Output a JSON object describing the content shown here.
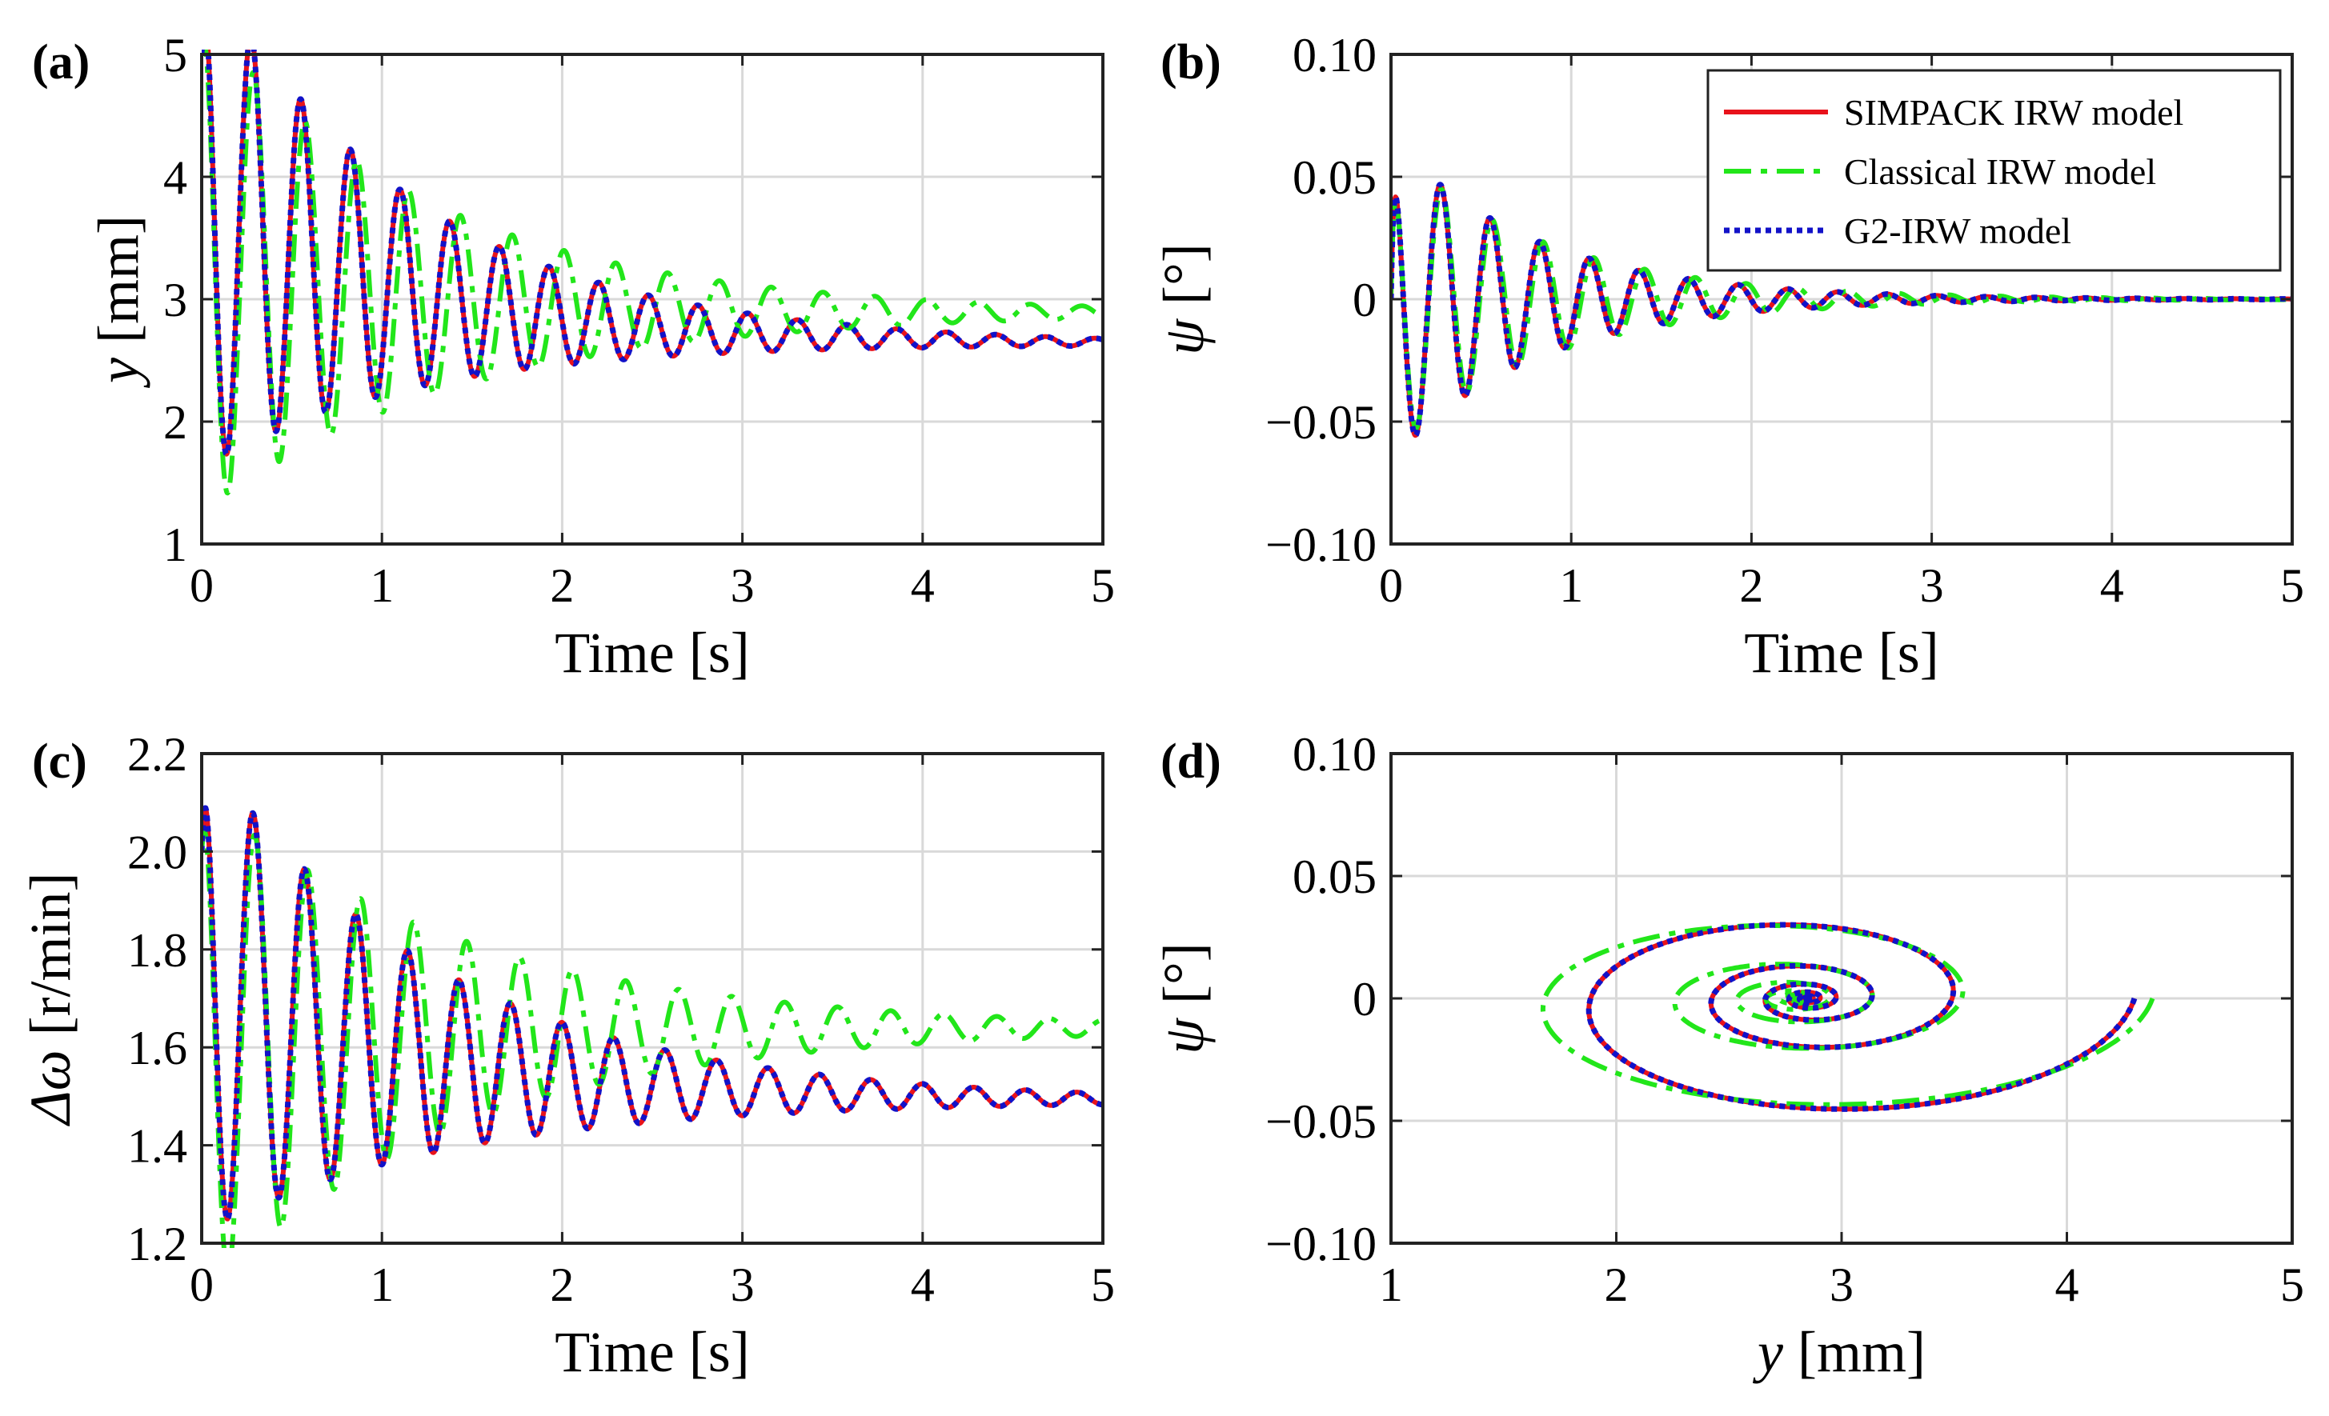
{
  "legend": {
    "placement": "top-right of panel (b)",
    "entries": [
      {
        "label": "SIMPACK IRW model",
        "color": "#e8131b",
        "style": "solid"
      },
      {
        "label": "Classical IRW model",
        "color": "#22e61a",
        "style": "dash-dot"
      },
      {
        "label": "G2-IRW model",
        "color": "#1212c8",
        "style": "dotted"
      }
    ]
  },
  "chart_data": [
    {
      "id": "a",
      "panel_label": "(a)",
      "type": "line",
      "xlabel": "Time [s]",
      "ylabel_var": "y",
      "ylabel_unit": " [mm]",
      "xlim": [
        0,
        5
      ],
      "ylim": [
        1,
        5
      ],
      "xticks": [
        0,
        1,
        2,
        3,
        4,
        5
      ],
      "yticks": [
        1,
        2,
        3,
        4,
        5
      ],
      "ytick_labels": [
        "1",
        "2",
        "3",
        "4",
        "5"
      ],
      "grid": true,
      "model": "damped_sine",
      "series": [
        {
          "name": "SIMPACK IRW model",
          "y0": 5.0,
          "start": 3.7,
          "final": 2.63,
          "amp": 2.1,
          "decay": 0.85,
          "freq": 3.63,
          "settle": 1.25
        },
        {
          "name": "Classical IRW model",
          "y0": 5.0,
          "start": 3.3,
          "final": 2.89,
          "amp": 2.05,
          "decay": 0.75,
          "freq": 3.48,
          "settle": 1.0
        },
        {
          "name": "G2-IRW model",
          "y0": 5.0,
          "start": 3.7,
          "final": 2.63,
          "amp": 2.1,
          "decay": 0.85,
          "freq": 3.63,
          "settle": 1.25
        }
      ]
    },
    {
      "id": "b",
      "panel_label": "(b)",
      "type": "line",
      "xlabel": "Time [s]",
      "ylabel_var": "ψ",
      "ylabel_unit": " [°]",
      "xlim": [
        0,
        5
      ],
      "ylim": [
        -0.1,
        0.1
      ],
      "xticks": [
        0,
        1,
        2,
        3,
        4,
        5
      ],
      "yticks": [
        -0.1,
        -0.05,
        0,
        0.05,
        0.1
      ],
      "ytick_labels": [
        "−0.10",
        "−0.05",
        "0",
        "0.05",
        "0.10"
      ],
      "grid": true,
      "model": "damped_sine_phase",
      "series": [
        {
          "name": "SIMPACK IRW model",
          "amp": 0.066,
          "decay": 1.25,
          "freq": 3.63,
          "phase": -1.57
        },
        {
          "name": "Classical IRW model",
          "amp": 0.062,
          "decay": 1.15,
          "freq": 3.55,
          "phase": -1.57
        },
        {
          "name": "G2-IRW model",
          "amp": 0.066,
          "decay": 1.25,
          "freq": 3.63,
          "phase": -1.57
        }
      ]
    },
    {
      "id": "c",
      "panel_label": "(c)",
      "type": "line",
      "xlabel": "Time [s]",
      "ylabel_var": "Δω",
      "ylabel_unit": " [r/min]",
      "xlim": [
        0,
        5
      ],
      "ylim": [
        1.2,
        2.2
      ],
      "xticks": [
        0,
        1,
        2,
        3,
        4,
        5
      ],
      "yticks": [
        1.2,
        1.4,
        1.6,
        1.8,
        2.0,
        2.2
      ],
      "ytick_labels": [
        "1.2",
        "1.4",
        "1.6",
        "1.8",
        "2.0",
        "2.2"
      ],
      "grid": true,
      "model": "damped_sine",
      "series": [
        {
          "name": "SIMPACK IRW model",
          "y0": 2.0,
          "start": 1.72,
          "final": 1.49,
          "amp": 0.5,
          "decay": 0.75,
          "freq": 3.5,
          "settle": 1.3
        },
        {
          "name": "Classical IRW model",
          "y0": 2.0,
          "start": 1.6,
          "final": 1.64,
          "amp": 0.52,
          "decay": 0.7,
          "freq": 3.4,
          "settle": 1.0
        },
        {
          "name": "G2-IRW model",
          "y0": 2.0,
          "start": 1.72,
          "final": 1.49,
          "amp": 0.5,
          "decay": 0.75,
          "freq": 3.5,
          "settle": 1.3
        }
      ]
    },
    {
      "id": "d",
      "panel_label": "(d)",
      "type": "line",
      "xlabel_var": "y",
      "xlabel_unit": " [mm]",
      "ylabel_var": "ψ",
      "ylabel_unit": " [°]",
      "xlim": [
        1,
        5
      ],
      "ylim": [
        -0.1,
        0.1
      ],
      "xticks": [
        1,
        2,
        3,
        4,
        5
      ],
      "yticks": [
        -0.1,
        -0.05,
        0,
        0.05,
        0.1
      ],
      "ytick_labels": [
        "−0.10",
        "−0.05",
        "0",
        "0.05",
        "0.10"
      ],
      "grid": true,
      "model": "phase_spiral",
      "series": [
        {
          "name": "SIMPACK IRW model",
          "xc": 2.85,
          "a0": 1.45,
          "b0": 0.055,
          "decay": 0.13,
          "turns": 7
        },
        {
          "name": "Classical IRW model",
          "xc": 2.78,
          "a0": 1.6,
          "b0": 0.052,
          "decay": 0.12,
          "turns": 7
        },
        {
          "name": "G2-IRW model",
          "xc": 2.85,
          "a0": 1.45,
          "b0": 0.055,
          "decay": 0.13,
          "turns": 7
        }
      ]
    }
  ]
}
